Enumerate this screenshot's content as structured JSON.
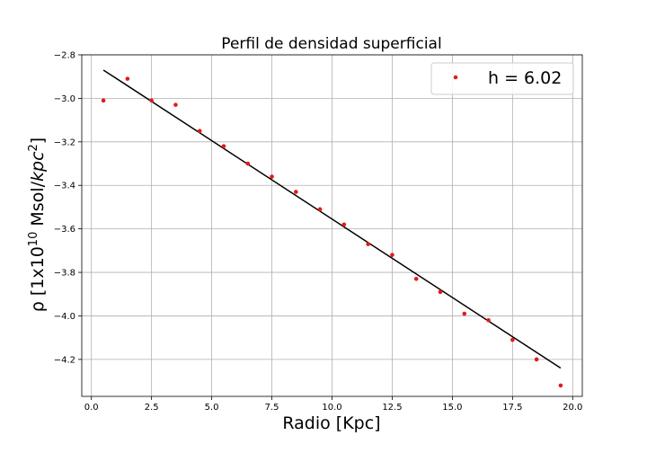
{
  "chart_data": {
    "type": "scatter",
    "title": "Perfil de densidad superficial",
    "xlabel": "Radio [Kpc]",
    "ylabel": {
      "pre": "ρ [1x10",
      "exp": "10",
      "mid": " Msol/",
      "unit": "kpc",
      "unit_exp": "2",
      "post": "]"
    },
    "xlim": [
      -0.4,
      20.4
    ],
    "ylim": [
      -4.37,
      -2.8
    ],
    "xticks": [
      0.0,
      2.5,
      5.0,
      7.5,
      10.0,
      12.5,
      15.0,
      17.5,
      20.0
    ],
    "xtick_labels": [
      "0.0",
      "2.5",
      "5.0",
      "7.5",
      "10.0",
      "12.5",
      "15.0",
      "17.5",
      "20.0"
    ],
    "yticks": [
      -2.8,
      -3.0,
      -3.2,
      -3.4,
      -3.6,
      -3.8,
      -4.0,
      -4.2
    ],
    "ytick_labels": [
      "−2.8",
      "−3.0",
      "−3.2",
      "−3.4",
      "−3.6",
      "−3.8",
      "−4.0",
      "−4.2"
    ],
    "grid": true,
    "legend_position": "top-right",
    "series": [
      {
        "name": "h = 6.02",
        "kind": "points",
        "color": "#e31a1c",
        "x": [
          0.5,
          1.5,
          2.5,
          3.5,
          4.5,
          5.5,
          6.5,
          7.5,
          8.5,
          9.5,
          10.5,
          11.5,
          12.5,
          13.5,
          14.5,
          15.5,
          16.5,
          17.5,
          18.5,
          19.5
        ],
        "y": [
          -3.01,
          -2.91,
          -3.01,
          -3.03,
          -3.15,
          -3.22,
          -3.3,
          -3.36,
          -3.43,
          -3.51,
          -3.58,
          -3.67,
          -3.72,
          -3.83,
          -3.89,
          -3.99,
          -4.02,
          -4.11,
          -4.2,
          -4.32
        ]
      },
      {
        "kind": "line",
        "color": "#000000",
        "x": [
          0.5,
          19.5
        ],
        "y": [
          -2.87,
          -4.24
        ]
      }
    ]
  }
}
